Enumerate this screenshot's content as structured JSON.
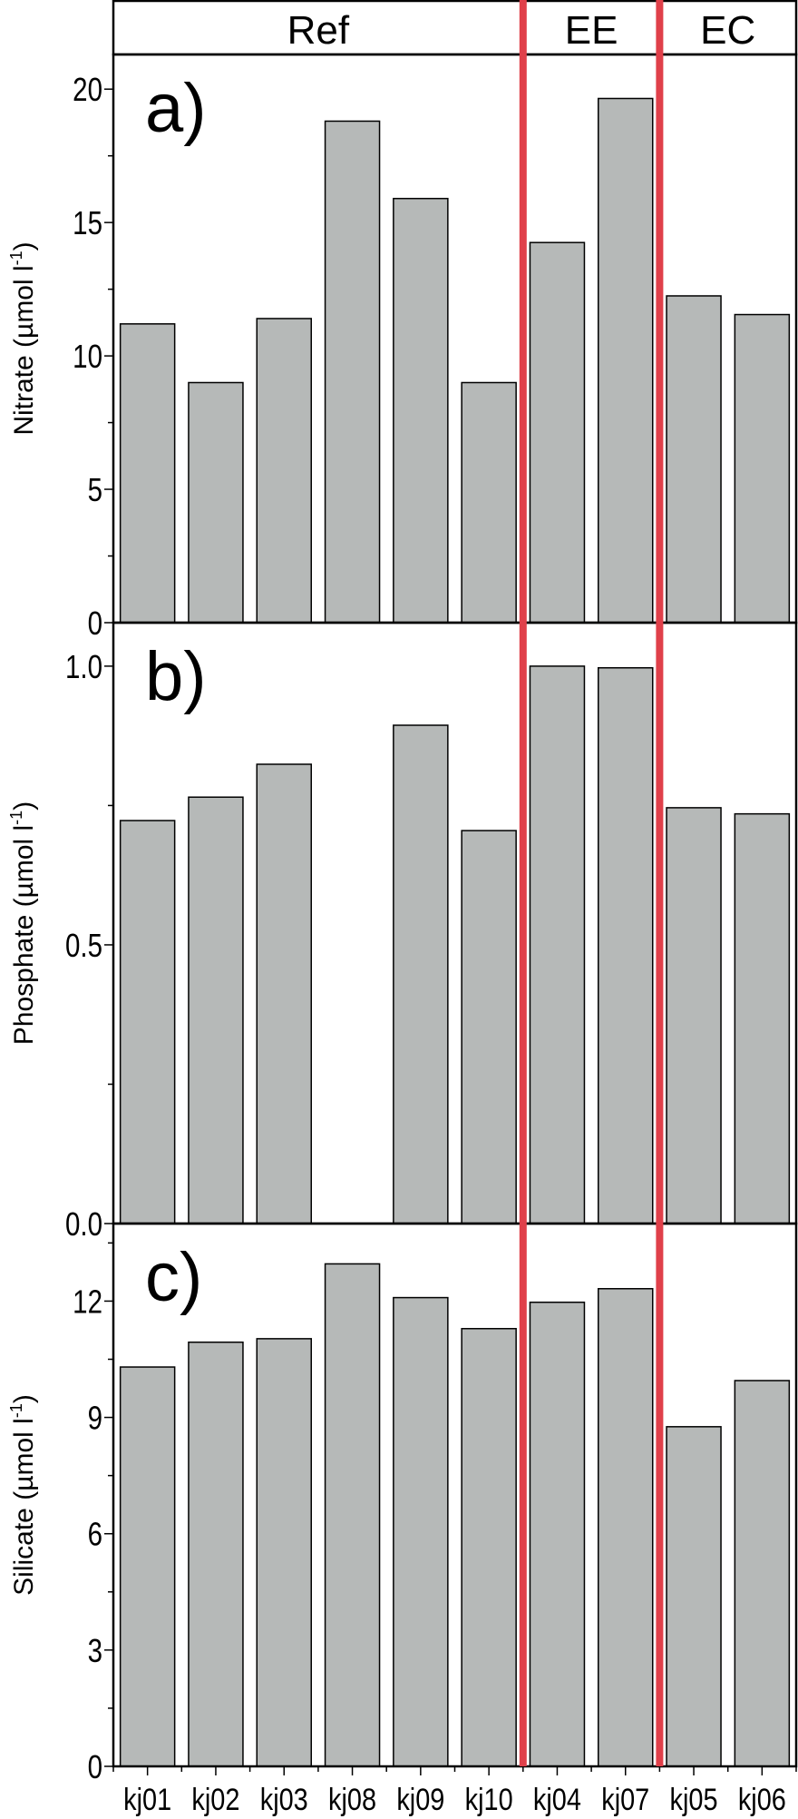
{
  "chart_data": [
    {
      "type": "bar",
      "panel_label": "a)",
      "ylabel": "Nitrate (µmol l",
      "ylabel_sup": "-1",
      "ylabel_close": ")",
      "categories": [
        "kj01",
        "kj02",
        "kj03",
        "kj08",
        "kj09",
        "kj10",
        "kj04",
        "kj07",
        "kj05",
        "kj06"
      ],
      "values": [
        11.2,
        9.0,
        11.4,
        18.8,
        15.9,
        9.0,
        14.25,
        19.65,
        12.25,
        11.55
      ],
      "ylim": [
        0,
        21.3
      ],
      "yticks": [
        0,
        5,
        10,
        15,
        20
      ],
      "ytick_labels": [
        "0",
        "5",
        "10",
        "15",
        "20"
      ],
      "yminor": 2.5
    },
    {
      "type": "bar",
      "panel_label": "b)",
      "ylabel": "Phosphate (µmol l",
      "ylabel_sup": "-1",
      "ylabel_close": ")",
      "categories": [
        "kj01",
        "kj02",
        "kj03",
        "kj08",
        "kj09",
        "kj10",
        "kj04",
        "kj07",
        "kj05",
        "kj06"
      ],
      "values": [
        0.723,
        0.765,
        0.824,
        null,
        0.894,
        0.705,
        1.0,
        0.997,
        0.746,
        0.735
      ],
      "ylim": [
        0,
        1.078
      ],
      "yticks": [
        0,
        0.5,
        1.0
      ],
      "ytick_labels": [
        "0.0",
        "0.5",
        "1.0"
      ],
      "yminor": 0.25
    },
    {
      "type": "bar",
      "panel_label": "c)",
      "ylabel": "Silicate (µmol l",
      "ylabel_sup": "-1",
      "ylabel_close": ")",
      "categories": [
        "kj01",
        "kj02",
        "kj03",
        "kj08",
        "kj09",
        "kj10",
        "kj04",
        "kj07",
        "kj05",
        "kj06"
      ],
      "values": [
        10.3,
        10.94,
        11.03,
        12.96,
        12.09,
        11.29,
        11.97,
        12.32,
        8.76,
        9.95
      ],
      "ylim": [
        0,
        14.0
      ],
      "yticks": [
        0,
        3,
        6,
        9,
        12
      ],
      "ytick_labels": [
        "0",
        "3",
        "6",
        "9",
        "12"
      ],
      "yminor": 1.5
    }
  ],
  "groups": [
    {
      "label": "Ref",
      "start": 0,
      "end": 6
    },
    {
      "label": "EE",
      "start": 6,
      "end": 8
    },
    {
      "label": "EC",
      "start": 8,
      "end": 10
    }
  ],
  "x_tick_labels": [
    "kj01",
    "kj02",
    "kj03",
    "kj08",
    "kj09",
    "kj10",
    "kj04",
    "kj07",
    "kj05",
    "kj06"
  ],
  "colors": {
    "bar": "#b6b9b8",
    "divider": "#e0404a",
    "axis": "#000000"
  },
  "grid": false
}
